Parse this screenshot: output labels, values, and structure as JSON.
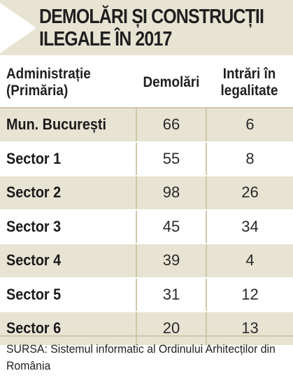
{
  "title": {
    "line1": "DEMOLĂRI ȘI CONSTRUCȚII",
    "line2": "ILEGALE ÎN 2017"
  },
  "table": {
    "headers": {
      "administration_line1": "Administrație",
      "administration_line2": "(Primăria)",
      "demolitions": "Demolări",
      "legalized_line1": "Intrări în",
      "legalized_line2": "legalitate"
    },
    "rows": [
      {
        "name": "Mun. București",
        "demolitions": "66",
        "legalized": "6"
      },
      {
        "name": "Sector 1",
        "demolitions": "55",
        "legalized": "8"
      },
      {
        "name": "Sector 2",
        "demolitions": "98",
        "legalized": "26"
      },
      {
        "name": "Sector 3",
        "demolitions": "45",
        "legalized": "34"
      },
      {
        "name": "Sector 4",
        "demolitions": "39",
        "legalized": "4"
      },
      {
        "name": "Sector 5",
        "demolitions": "31",
        "legalized": "12"
      },
      {
        "name": "Sector 6",
        "demolitions": "20",
        "legalized": "13"
      }
    ]
  },
  "source": "SURSA: Sistemul informatic al Ordinului Arhitecților din România",
  "colors": {
    "band": "#e8e4d4",
    "rule": "#cfc7a6",
    "text": "#1f1f1f"
  }
}
